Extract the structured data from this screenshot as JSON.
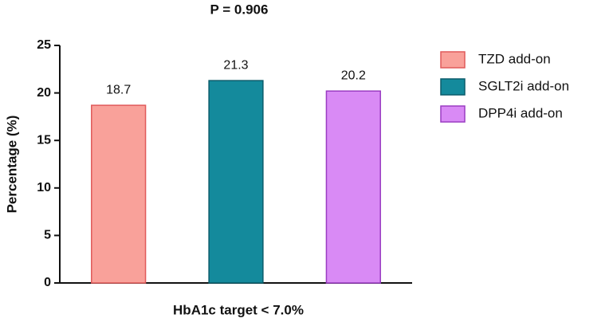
{
  "chart_data": {
    "type": "bar",
    "title": "P = 0.906",
    "categories": [
      "HbA1c target < 7.0%"
    ],
    "ylabel": "Percentage (%)",
    "series": [
      {
        "name": "TZD add-on",
        "color": "#f9a19a",
        "edgecolor": "#e05a5a",
        "values": [
          18.7
        ]
      },
      {
        "name": "SGLT2i add-on",
        "color": "#148a9c",
        "edgecolor": "#0b5c6b",
        "values": [
          21.3
        ]
      },
      {
        "name": "DPP4i add-on",
        "color": "#d98af5",
        "edgecolor": "#9a3cc2",
        "values": [
          20.2
        ]
      }
    ],
    "ylim": [
      0,
      25
    ],
    "yticks": [
      0,
      5,
      10,
      15,
      20,
      25
    ],
    "grid": false,
    "legend": "right"
  }
}
